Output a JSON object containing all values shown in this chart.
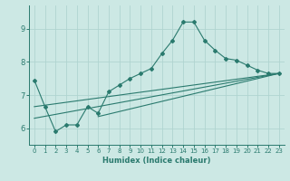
{
  "xlabel": "Humidex (Indice chaleur)",
  "background_color": "#cce8e4",
  "grid_color": "#b0d4d0",
  "line_color": "#2a7a6e",
  "xlim": [
    -0.5,
    23.5
  ],
  "ylim": [
    5.5,
    9.7
  ],
  "yticks": [
    6,
    7,
    8,
    9
  ],
  "xticks": [
    0,
    1,
    2,
    3,
    4,
    5,
    6,
    7,
    8,
    9,
    10,
    11,
    12,
    13,
    14,
    15,
    16,
    17,
    18,
    19,
    20,
    21,
    22,
    23
  ],
  "line1_x": [
    0,
    1,
    2,
    3,
    4,
    5,
    6,
    7,
    8,
    9,
    10,
    11,
    12,
    13,
    14,
    15,
    16,
    17,
    18,
    19,
    20,
    21,
    22,
    23
  ],
  "line1_y": [
    7.45,
    6.65,
    5.9,
    6.1,
    6.1,
    6.65,
    6.45,
    7.1,
    7.3,
    7.5,
    7.65,
    7.8,
    8.25,
    8.65,
    9.2,
    9.2,
    8.65,
    8.35,
    8.1,
    8.05,
    7.9,
    7.75,
    7.65,
    7.65
  ],
  "line2_x": [
    0,
    23
  ],
  "line2_y": [
    6.65,
    7.65
  ],
  "line3_x": [
    0,
    23
  ],
  "line3_y": [
    6.3,
    7.65
  ],
  "line4_x": [
    6,
    23
  ],
  "line4_y": [
    6.35,
    7.65
  ]
}
